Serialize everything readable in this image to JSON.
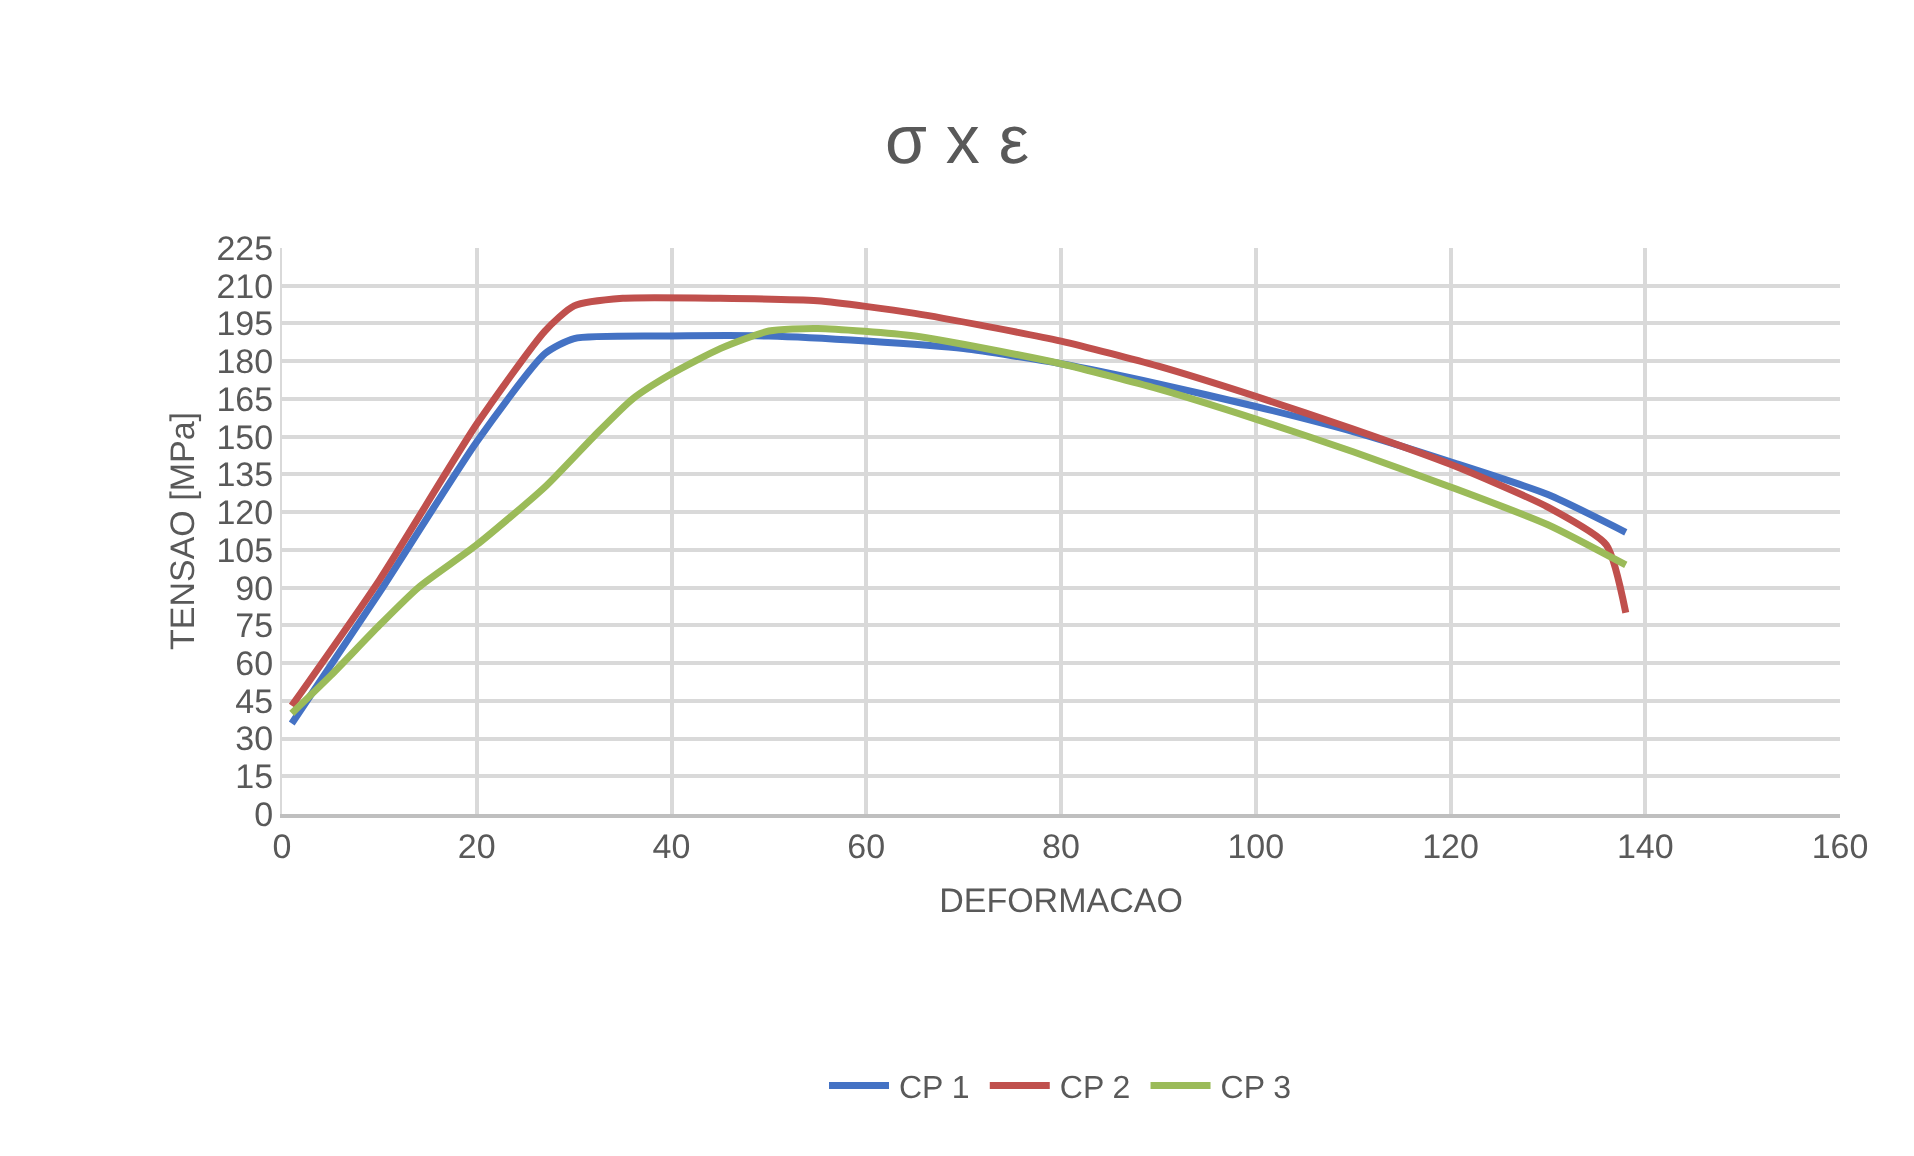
{
  "chart_data": {
    "type": "line",
    "title": "σ x ε",
    "xlabel": "DEFORMACAO",
    "ylabel": "TENSAO [MPa]",
    "xlim": [
      0,
      160
    ],
    "xticks": [
      0,
      20,
      40,
      60,
      80,
      100,
      120,
      140,
      160
    ],
    "ylim": [
      0,
      225
    ],
    "yticks": [
      0,
      15,
      30,
      45,
      60,
      75,
      90,
      105,
      120,
      135,
      150,
      165,
      180,
      195,
      210,
      225
    ],
    "grid": true,
    "legend": "bottom",
    "marker": "none",
    "line_style": "solid",
    "series": [
      {
        "name": "CP 1",
        "color": "#4472c4",
        "x": [
          1,
          10,
          20,
          27,
          30,
          40,
          50,
          60,
          70,
          80,
          90,
          100,
          110,
          120,
          130,
          138
        ],
        "values": [
          36,
          88,
          148,
          183,
          189,
          190,
          190,
          188,
          185,
          179,
          171,
          162,
          152,
          140,
          127,
          112
        ]
      },
      {
        "name": "CP 2",
        "color": "#c0504d",
        "x": [
          1,
          10,
          20,
          27,
          30,
          35,
          45,
          55,
          65,
          80,
          90,
          100,
          110,
          120,
          130,
          136,
          138
        ],
        "values": [
          43,
          93,
          155,
          192,
          202,
          205,
          205,
          204,
          199,
          188,
          178,
          166,
          153,
          139,
          122,
          107,
          80
        ]
      },
      {
        "name": "CP 3",
        "color": "#9bbb59",
        "x": [
          1,
          5,
          10,
          14,
          20,
          27,
          32,
          36,
          40,
          45,
          50,
          55,
          65,
          80,
          90,
          100,
          110,
          120,
          130,
          138
        ],
        "values": [
          40,
          55,
          75,
          90,
          107,
          130,
          150,
          165,
          175,
          185,
          192,
          193,
          190,
          179,
          169,
          157,
          144,
          130,
          115,
          99
        ]
      }
    ]
  }
}
